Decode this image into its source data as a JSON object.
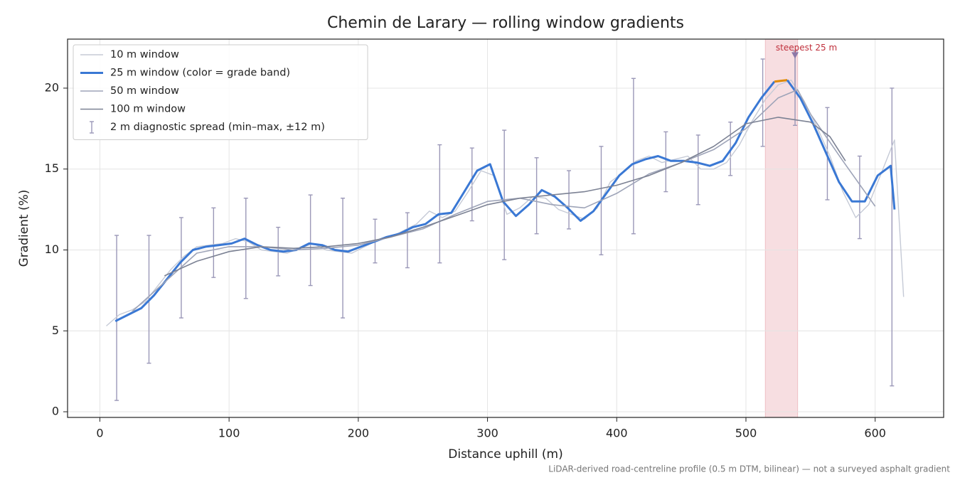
{
  "chart_data": {
    "type": "line",
    "title": "Chemin de Larary — rolling window gradients",
    "xlabel": "Distance uphill (m)",
    "ylabel": "Gradient (%)",
    "footnote": "LiDAR-derived road-centreline profile (0.5 m DTM, bilinear) — not a surveyed asphalt gradient",
    "xlim": [
      -25,
      653
    ],
    "ylim": [
      -0.35,
      23.03
    ],
    "xticks": [
      0,
      100,
      200,
      300,
      400,
      500,
      600
    ],
    "yticks": [
      0,
      5,
      10,
      15,
      20
    ],
    "grid": true,
    "legend": "upper left",
    "span": {
      "from": 515,
      "to": 540,
      "color": "#e8a0a8"
    },
    "annotation": {
      "text": "steepest 25 m",
      "x": 538,
      "y": 22,
      "color": "#c0303c"
    },
    "series": [
      {
        "name": "10 m window",
        "color": "#c5cad6",
        "width": 1.4,
        "x": [
          5,
          15,
          25,
          35,
          45,
          55,
          65,
          75,
          85,
          95,
          105,
          115,
          125,
          135,
          145,
          155,
          165,
          175,
          185,
          195,
          205,
          215,
          225,
          235,
          245,
          255,
          265,
          275,
          285,
          295,
          305,
          315,
          325,
          335,
          345,
          355,
          365,
          375,
          385,
          395,
          405,
          415,
          425,
          435,
          445,
          455,
          465,
          475,
          485,
          495,
          505,
          515,
          525,
          535,
          545,
          555,
          565,
          575,
          585,
          595,
          605,
          615,
          622
        ],
        "values": [
          5.3,
          6.0,
          6.3,
          6.8,
          7.8,
          8.8,
          9.6,
          10.2,
          10.3,
          10.4,
          10.7,
          10.5,
          10.0,
          9.9,
          9.8,
          10.1,
          10.4,
          10.0,
          9.9,
          9.8,
          10.2,
          10.6,
          10.8,
          11.2,
          11.6,
          12.4,
          12.0,
          12.4,
          13.6,
          14.9,
          14.6,
          12.2,
          12.6,
          13.3,
          13.2,
          12.5,
          12.2,
          11.9,
          12.6,
          14.2,
          14.8,
          15.5,
          15.8,
          15.4,
          15.6,
          15.8,
          15.0,
          15.0,
          15.4,
          16.5,
          18.0,
          19.3,
          20.2,
          20.5,
          19.2,
          17.6,
          15.8,
          13.6,
          12.0,
          12.8,
          14.8,
          16.8,
          7.1
        ]
      },
      {
        "name": "25 m window (color = grade band)",
        "color": "#3a78d4",
        "width": 3,
        "band": {
          "min": 20,
          "color": "#e08a00"
        },
        "x": [
          12,
          22,
          32,
          42,
          52,
          62,
          72,
          82,
          92,
          102,
          112,
          122,
          132,
          142,
          152,
          162,
          172,
          182,
          192,
          202,
          212,
          222,
          232,
          242,
          252,
          262,
          272,
          282,
          292,
          302,
          312,
          322,
          332,
          342,
          352,
          362,
          372,
          382,
          392,
          402,
          412,
          422,
          432,
          442,
          452,
          462,
          472,
          482,
          492,
          502,
          512,
          522,
          532,
          542,
          552,
          562,
          572,
          582,
          592,
          602,
          612,
          615
        ],
        "values": [
          5.6,
          6.0,
          6.4,
          7.2,
          8.2,
          9.2,
          10.0,
          10.2,
          10.3,
          10.4,
          10.7,
          10.3,
          10.0,
          9.9,
          10.0,
          10.4,
          10.3,
          10.0,
          9.9,
          10.2,
          10.5,
          10.8,
          11.0,
          11.4,
          11.6,
          12.2,
          12.3,
          13.6,
          14.9,
          15.3,
          13.0,
          12.1,
          12.8,
          13.7,
          13.3,
          12.6,
          11.8,
          12.4,
          13.5,
          14.6,
          15.3,
          15.6,
          15.8,
          15.5,
          15.5,
          15.4,
          15.2,
          15.5,
          16.6,
          18.2,
          19.4,
          20.4,
          20.5,
          19.4,
          17.8,
          16.0,
          14.2,
          13.0,
          13.0,
          14.6,
          15.2,
          12.5
        ]
      },
      {
        "name": "50 m window",
        "color": "#9ea4b8",
        "width": 1.6,
        "x": [
          25,
          50,
          75,
          100,
          125,
          150,
          175,
          200,
          225,
          250,
          275,
          300,
          325,
          350,
          375,
          400,
          425,
          450,
          475,
          500,
          525,
          540,
          550,
          575,
          600
        ],
        "values": [
          6.2,
          8.0,
          9.8,
          10.2,
          10.2,
          10.0,
          10.1,
          10.3,
          10.8,
          11.3,
          12.2,
          13.0,
          13.2,
          12.8,
          12.6,
          13.5,
          14.7,
          15.4,
          16.2,
          17.5,
          19.4,
          19.9,
          18.4,
          15.5,
          12.7
        ]
      },
      {
        "name": "100 m window",
        "color": "#7c8294",
        "width": 1.6,
        "x": [
          50,
          75,
          100,
          125,
          150,
          175,
          200,
          225,
          250,
          275,
          300,
          325,
          350,
          375,
          400,
          425,
          450,
          475,
          500,
          525,
          550,
          565,
          577
        ],
        "values": [
          8.4,
          9.3,
          9.9,
          10.2,
          10.1,
          10.2,
          10.4,
          10.8,
          11.4,
          12.1,
          12.8,
          13.2,
          13.4,
          13.6,
          14.0,
          14.6,
          15.4,
          16.4,
          17.8,
          18.2,
          17.9,
          17.0,
          15.5
        ]
      }
    ],
    "errorbars": {
      "name": "2 m diagnostic spread (min–max, ±12 m)",
      "color": "#9b98b8",
      "x": [
        13,
        38,
        63,
        88,
        113,
        138,
        163,
        188,
        213,
        238,
        263,
        288,
        313,
        338,
        363,
        388,
        413,
        438,
        463,
        488,
        513,
        538,
        563,
        588,
        613
      ],
      "lower": [
        0.7,
        3.0,
        5.8,
        8.3,
        7.0,
        8.4,
        7.8,
        5.8,
        9.2,
        8.9,
        9.2,
        11.8,
        9.4,
        11.0,
        11.3,
        9.7,
        11.0,
        13.6,
        12.8,
        14.6,
        16.4,
        17.7,
        13.1,
        10.7,
        1.6
      ],
      "upper": [
        10.9,
        10.9,
        12.0,
        12.6,
        13.2,
        11.4,
        13.4,
        13.2,
        11.9,
        12.3,
        16.5,
        16.3,
        17.4,
        15.7,
        14.9,
        16.4,
        20.6,
        17.3,
        17.1,
        17.9,
        21.8,
        22.3,
        18.8,
        15.8,
        20.0
      ]
    }
  }
}
